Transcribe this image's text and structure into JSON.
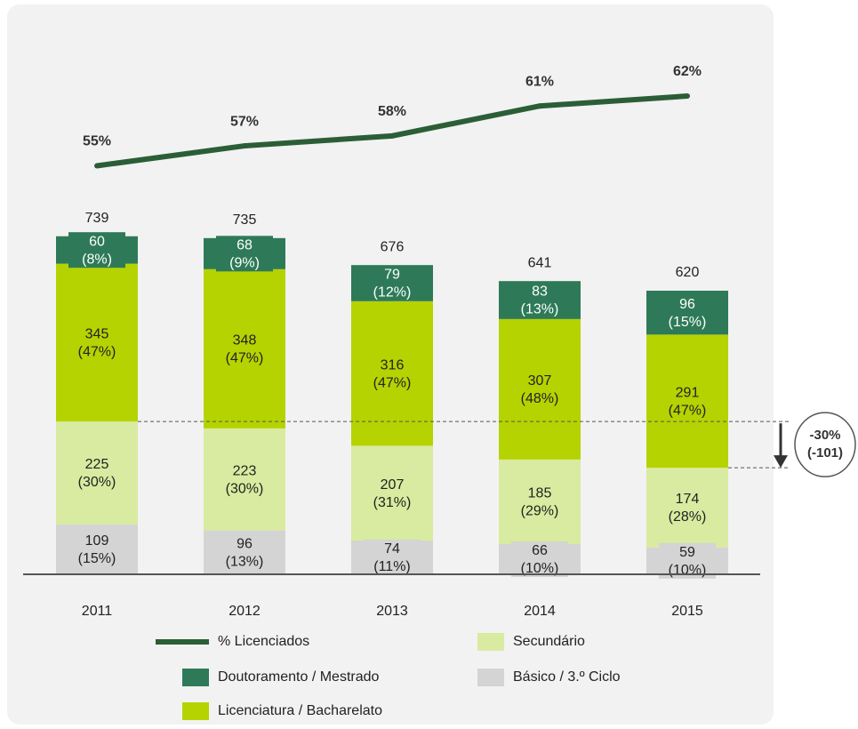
{
  "chart_data": {
    "type": "stacked-bar-line",
    "categories": [
      "2011",
      "2012",
      "2013",
      "2014",
      "2015"
    ],
    "ylim": [
      0,
      1100
    ],
    "y2lim": [
      14,
      64.5
    ],
    "totals": [
      739,
      735,
      676,
      641,
      620
    ],
    "series": [
      {
        "name": "Básico / 3.º Ciclo",
        "color": "#d4d4d4",
        "values": [
          109,
          96,
          74,
          66,
          59
        ],
        "share_labels": [
          "(15%)",
          "(13%)",
          "(11%)",
          "(10%)",
          "(10%)"
        ]
      },
      {
        "name": "Secundário",
        "color": "#d9eba0",
        "values": [
          225,
          223,
          207,
          185,
          174
        ],
        "share_labels": [
          "(30%)",
          "(30%)",
          "(31%)",
          "(29%)",
          "(28%)"
        ]
      },
      {
        "name": "Licenciatura / Bacharelato",
        "color": "#b5d300",
        "values": [
          345,
          348,
          316,
          307,
          291
        ],
        "share_labels": [
          "(47%)",
          "(47%)",
          "(47%)",
          "(48%)",
          "(47%)"
        ]
      },
      {
        "name": "Doutoramento / Mestrado",
        "color": "#2e7a58",
        "values": [
          60,
          68,
          79,
          83,
          96
        ],
        "share_labels": [
          "(8%)",
          "(9%)",
          "(12%)",
          "(13%)",
          "(15%)"
        ]
      }
    ],
    "line": {
      "name": "% Licenciados",
      "color": "#2b5e36",
      "axis": "y2",
      "values": [
        55,
        57,
        58,
        61,
        62
      ],
      "value_labels": [
        "55%",
        "57%",
        "58%",
        "61%",
        "62%"
      ]
    },
    "annotation": {
      "lines": [
        "-30%",
        "(-101)"
      ]
    }
  }
}
